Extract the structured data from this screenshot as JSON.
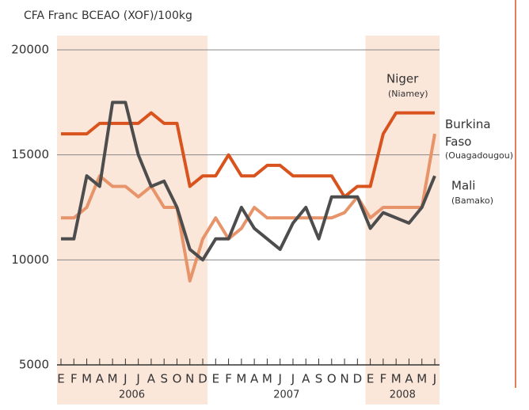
{
  "chart_data": {
    "type": "line",
    "y_axis_label": "CFA Franc BCEAO (XOF)/100kg",
    "categories": [
      "E",
      "F",
      "M",
      "A",
      "M",
      "J",
      "J",
      "A",
      "S",
      "O",
      "N",
      "D",
      "E",
      "F",
      "M",
      "A",
      "M",
      "J",
      "J",
      "A",
      "S",
      "O",
      "N",
      "D",
      "E",
      "F",
      "M",
      "A",
      "M",
      "J"
    ],
    "years": [
      "2006",
      "2007",
      "2008"
    ],
    "shaded_years": [
      "2006",
      "2008"
    ],
    "ylim": [
      5000,
      20000
    ],
    "yticks": [
      5000,
      10000,
      15000,
      20000
    ],
    "grid": true,
    "series": [
      {
        "name": "Niger",
        "city": "(Niamey)",
        "color": "#d9531e",
        "values": [
          16000,
          16000,
          16000,
          16500,
          16500,
          16500,
          16500,
          17000,
          16500,
          16500,
          13500,
          14000,
          14000,
          15000,
          14000,
          14000,
          14500,
          14500,
          14000,
          14000,
          14000,
          14000,
          13000,
          13500,
          13500,
          16000,
          17000,
          17000,
          17000,
          17000
        ]
      },
      {
        "name": "Burkina Faso",
        "city": "(Ouagadougou)",
        "color": "#e8946a",
        "values": [
          12000,
          12000,
          12500,
          14000,
          13500,
          13500,
          13000,
          13500,
          12500,
          12500,
          9000,
          11000,
          12000,
          11000,
          11500,
          12500,
          12000,
          12000,
          12000,
          12000,
          12000,
          12000,
          12250,
          13000,
          12000,
          12500,
          12500,
          12500,
          12500,
          16000
        ]
      },
      {
        "name": "Mali",
        "city": "(Bamako)",
        "color": "#4d4d4d",
        "values": [
          11000,
          11000,
          14000,
          13500,
          17500,
          17500,
          15000,
          13500,
          13750,
          12500,
          10500,
          10000,
          11000,
          11000,
          12500,
          11500,
          11000,
          10500,
          11750,
          12500,
          11000,
          13000,
          13000,
          13000,
          11500,
          12250,
          12000,
          11750,
          12500,
          14000
        ]
      }
    ]
  }
}
